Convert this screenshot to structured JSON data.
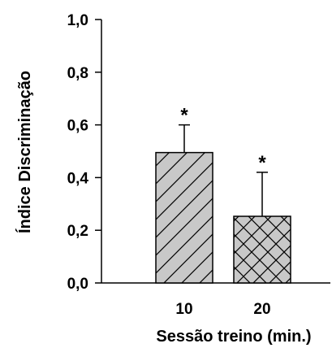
{
  "chart_data": {
    "type": "bar",
    "title": "",
    "xlabel": "Sessão treino (min.)",
    "ylabel": "Índice Discriminação",
    "categories": [
      "10",
      "20"
    ],
    "values": [
      0.495,
      0.253
    ],
    "error_upper": [
      0.6,
      0.42
    ],
    "significance": [
      "*",
      "*"
    ],
    "bar_patterns": [
      "diagonal-hatch",
      "crosshatch"
    ],
    "bar_fill_color": "#c8c8c8",
    "ylim": [
      0.0,
      1.0
    ],
    "yticks": [
      "0,0",
      "0,2",
      "0,4",
      "0,6",
      "0,8",
      "1,0"
    ],
    "grid": false,
    "legend": "none"
  }
}
